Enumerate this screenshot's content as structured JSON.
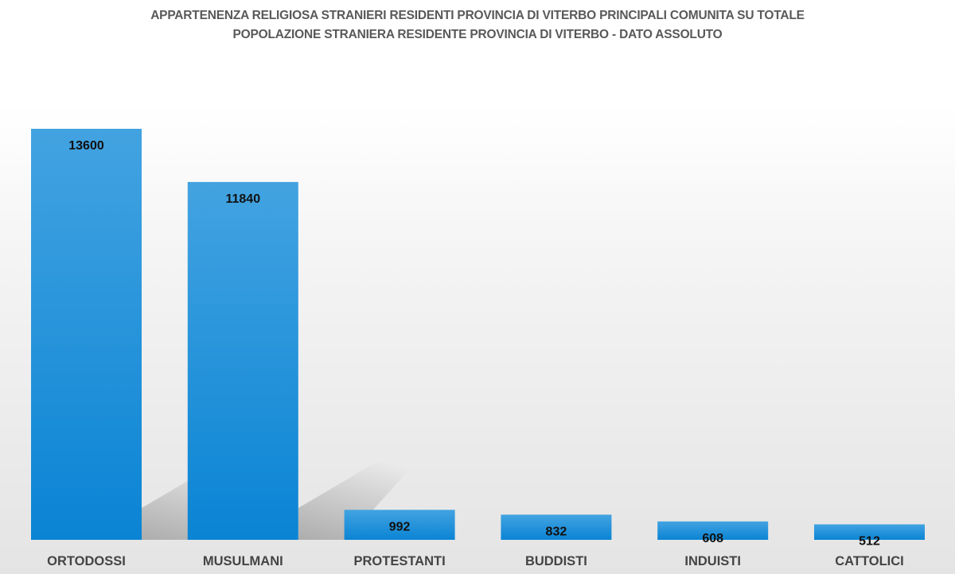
{
  "chart_data": {
    "type": "bar",
    "title": "APPARTENENZA RELIGIOSA STRANIERI RESIDENTI PROVINCIA DI VITERBO PRINCIPALI COMUNITA SU TOTALE",
    "subtitle": "POPOLAZIONE STRANIERA RESIDENTE PROVINCIA DI VITERBO - DATO ASSOLUTO",
    "categories": [
      "ORTODOSSI",
      "MUSULMANI",
      "PROTESTANTI",
      "BUDDISTI",
      "INDUISTI",
      "CATTOLICI"
    ],
    "values": [
      13600,
      11840,
      992,
      832,
      608,
      512
    ],
    "data_labels": [
      "13600",
      "11840",
      "992",
      "832",
      "608",
      "512"
    ],
    "xlabel": "",
    "ylabel": "",
    "ylim": [
      0,
      13600
    ],
    "grid": false,
    "legend": "none",
    "colors": {
      "bar_top": "#43a3e1",
      "bar_bottom": "#0a84d4",
      "shadow": "#9a9a9a"
    }
  }
}
